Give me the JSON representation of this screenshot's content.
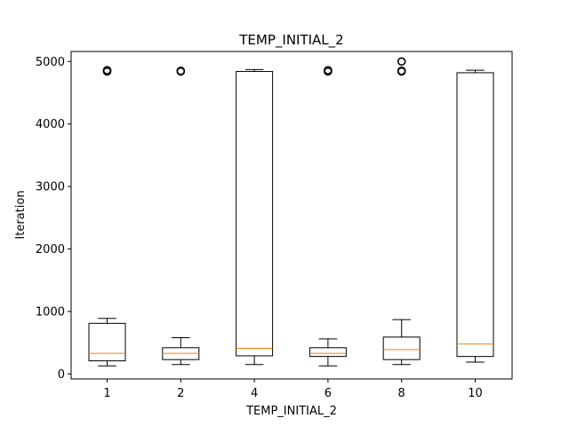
{
  "chart_data": {
    "type": "boxplot",
    "title": "TEMP_INITIAL_2",
    "xlabel": "TEMP_INITIAL_2",
    "ylabel": "Iteration",
    "ylim": [
      -80,
      5160
    ],
    "yticks": [
      0,
      1000,
      2000,
      3000,
      4000,
      5000
    ],
    "grid": false,
    "categories": [
      "1",
      "2",
      "4",
      "6",
      "8",
      "10"
    ],
    "boxes": [
      {
        "label": "1",
        "whisker_low": 130,
        "q1": 210,
        "median": 330,
        "q3": 810,
        "whisker_high": 890,
        "fliers": [
          4840,
          4850,
          4860
        ]
      },
      {
        "label": "2",
        "whisker_low": 150,
        "q1": 230,
        "median": 330,
        "q3": 420,
        "whisker_high": 580,
        "fliers": [
          4840,
          4850
        ]
      },
      {
        "label": "4",
        "whisker_low": 150,
        "q1": 290,
        "median": 410,
        "q3": 4840,
        "whisker_high": 4870,
        "fliers": []
      },
      {
        "label": "6",
        "whisker_low": 130,
        "q1": 280,
        "median": 330,
        "q3": 420,
        "whisker_high": 560,
        "fliers": [
          4840,
          4850,
          4860
        ]
      },
      {
        "label": "8",
        "whisker_low": 150,
        "q1": 230,
        "median": 390,
        "q3": 590,
        "whisker_high": 870,
        "fliers": [
          4840,
          4850,
          5000
        ]
      },
      {
        "label": "10",
        "whisker_low": 190,
        "q1": 280,
        "median": 480,
        "q3": 4820,
        "whisker_high": 4860,
        "fliers": []
      }
    ],
    "colors": {
      "box": "#000000",
      "median": "#ff7f0e"
    }
  }
}
